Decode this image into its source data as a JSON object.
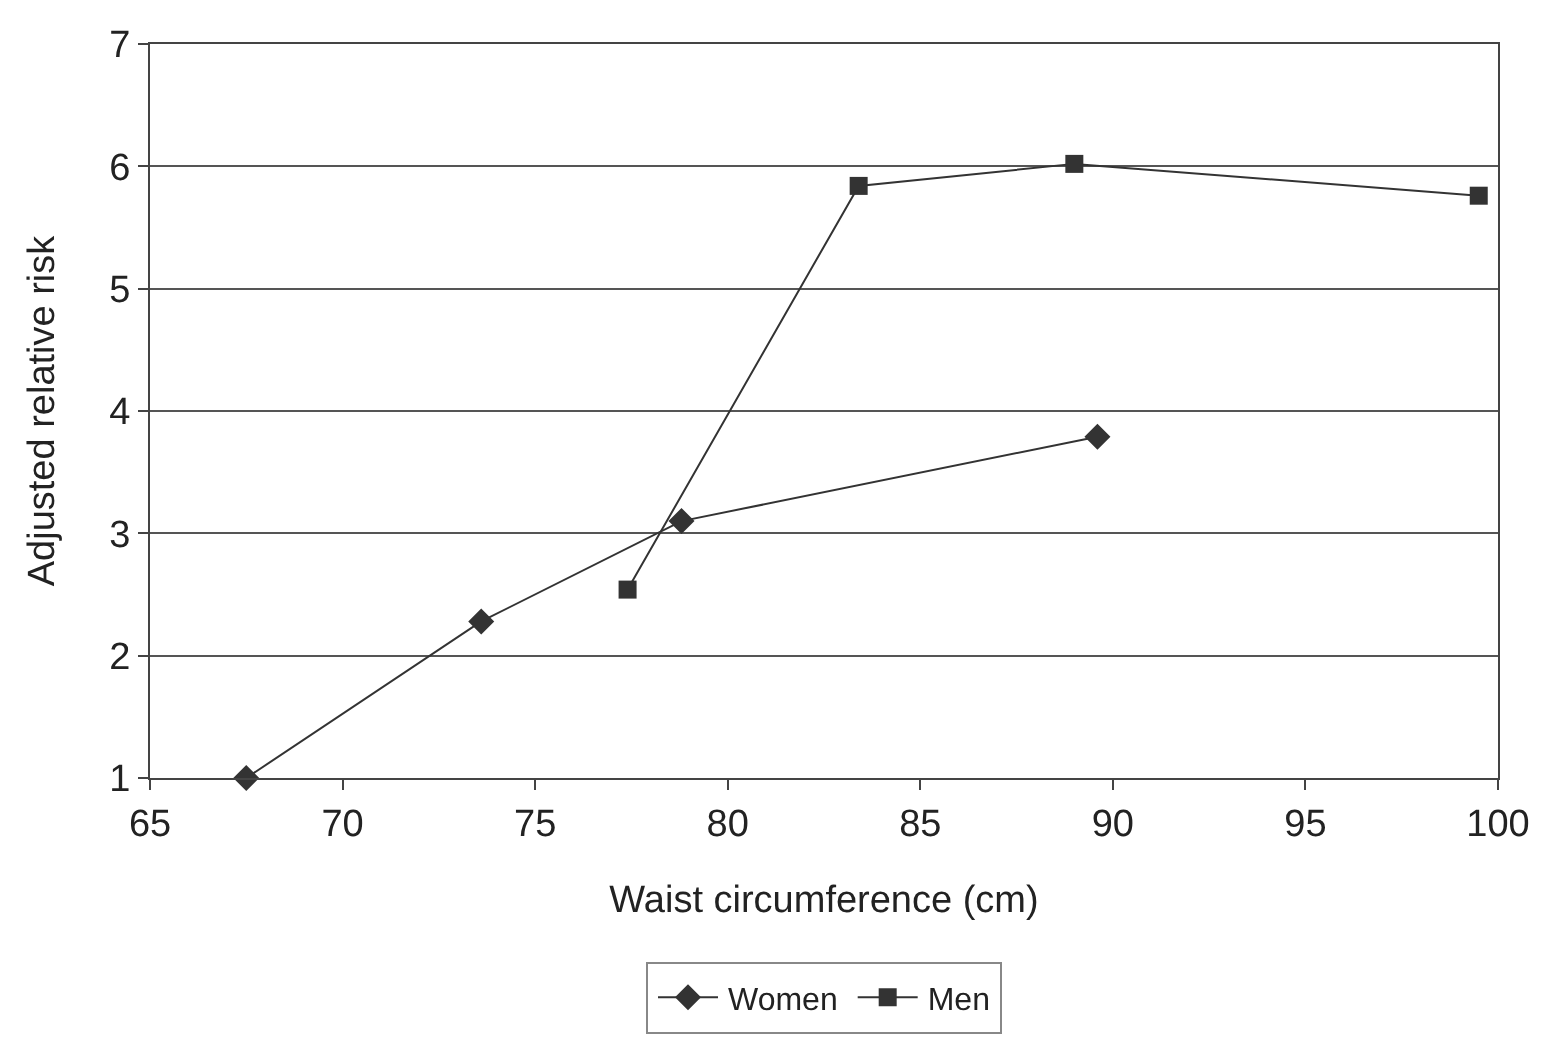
{
  "chart_data": {
    "type": "line",
    "xlabel": "Waist circumference (cm)",
    "ylabel": "Adjusted relative risk",
    "xlim": [
      65,
      100
    ],
    "xticks": [
      65,
      70,
      75,
      80,
      85,
      90,
      95,
      100
    ],
    "ylim": [
      1,
      7
    ],
    "yticks": [
      1,
      2,
      3,
      4,
      5,
      6,
      7
    ],
    "grid": "y",
    "legend": "bottom",
    "series": [
      {
        "name": "Women",
        "color": "#333333",
        "marker": "diamond",
        "x": [
          67.5,
          73.6,
          78.8,
          89.6
        ],
        "values": [
          1,
          2.28,
          3.1,
          3.79
        ]
      },
      {
        "name": "Men",
        "color": "#333333",
        "marker": "square",
        "x": [
          77.4,
          83.4,
          89.0,
          99.5
        ],
        "values": [
          2.54,
          5.84,
          6.02,
          5.76
        ]
      }
    ]
  }
}
